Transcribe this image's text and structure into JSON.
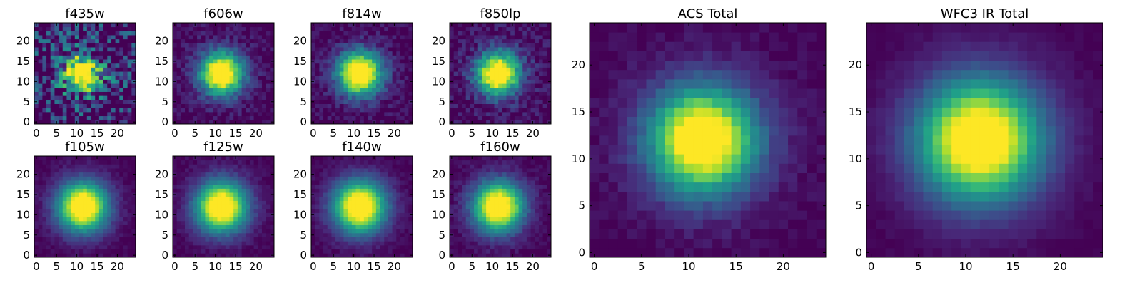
{
  "chart_data": [
    {
      "type": "heatmap",
      "title": "f435w",
      "noise": 0.3,
      "sigma": 3.2,
      "xlim": [
        -0.5,
        24.5
      ],
      "ylim": [
        -0.5,
        24.5
      ],
      "xticks": [
        0,
        5,
        10,
        15,
        20
      ],
      "yticks": [
        0,
        5,
        10,
        15,
        20
      ],
      "center": [
        11.5,
        12.0
      ],
      "seed": 11
    },
    {
      "type": "heatmap",
      "title": "f606w",
      "noise": 0.07,
      "sigma": 3.6,
      "xlim": [
        -0.5,
        24.5
      ],
      "ylim": [
        -0.5,
        24.5
      ],
      "xticks": [
        0,
        5,
        10,
        15,
        20
      ],
      "yticks": [
        0,
        5,
        10,
        15,
        20
      ],
      "center": [
        11.5,
        12.0
      ],
      "seed": 23
    },
    {
      "type": "heatmap",
      "title": "f814w",
      "noise": 0.07,
      "sigma": 3.7,
      "xlim": [
        -0.5,
        24.5
      ],
      "ylim": [
        -0.5,
        24.5
      ],
      "xticks": [
        0,
        5,
        10,
        15,
        20
      ],
      "yticks": [
        0,
        5,
        10,
        15,
        20
      ],
      "center": [
        11.5,
        12.0
      ],
      "seed": 37
    },
    {
      "type": "heatmap",
      "title": "f850lp",
      "noise": 0.09,
      "sigma": 3.6,
      "xlim": [
        -0.5,
        24.5
      ],
      "ylim": [
        -0.5,
        24.5
      ],
      "xticks": [
        0,
        5,
        10,
        15,
        20
      ],
      "yticks": [
        0,
        5,
        10,
        15,
        20
      ],
      "center": [
        11.5,
        12.0
      ],
      "seed": 41
    },
    {
      "type": "heatmap",
      "title": "f105w",
      "noise": 0.03,
      "sigma": 4.2,
      "xlim": [
        -0.5,
        24.5
      ],
      "ylim": [
        -0.5,
        24.5
      ],
      "xticks": [
        0,
        5,
        10,
        15,
        20
      ],
      "yticks": [
        0,
        5,
        10,
        15,
        20
      ],
      "center": [
        11.5,
        12.0
      ],
      "seed": 53
    },
    {
      "type": "heatmap",
      "title": "f125w",
      "noise": 0.03,
      "sigma": 4.3,
      "xlim": [
        -0.5,
        24.5
      ],
      "ylim": [
        -0.5,
        24.5
      ],
      "xticks": [
        0,
        5,
        10,
        15,
        20
      ],
      "yticks": [
        0,
        5,
        10,
        15,
        20
      ],
      "center": [
        11.5,
        12.0
      ],
      "seed": 67
    },
    {
      "type": "heatmap",
      "title": "f140w",
      "noise": 0.03,
      "sigma": 4.4,
      "xlim": [
        -0.5,
        24.5
      ],
      "ylim": [
        -0.5,
        24.5
      ],
      "xticks": [
        0,
        5,
        10,
        15,
        20
      ],
      "yticks": [
        0,
        5,
        10,
        15,
        20
      ],
      "center": [
        11.5,
        12.0
      ],
      "seed": 71
    },
    {
      "type": "heatmap",
      "title": "f160w",
      "noise": 0.04,
      "sigma": 4.2,
      "xlim": [
        -0.5,
        24.5
      ],
      "ylim": [
        -0.5,
        24.5
      ],
      "xticks": [
        0,
        5,
        10,
        15,
        20
      ],
      "yticks": [
        0,
        5,
        10,
        15,
        20
      ],
      "center": [
        11.5,
        12.0
      ],
      "seed": 83
    },
    {
      "type": "heatmap",
      "title": "ACS Total",
      "noise": 0.03,
      "sigma": 3.8,
      "xlim": [
        -0.5,
        24.5
      ],
      "ylim": [
        -0.5,
        24.5
      ],
      "xticks": [
        0,
        5,
        10,
        15,
        20
      ],
      "yticks": [
        0,
        5,
        10,
        15,
        20
      ],
      "center": [
        11.5,
        12.0
      ],
      "seed": 97
    },
    {
      "type": "heatmap",
      "title": "WFC3 IR Total",
      "noise": 0.015,
      "sigma": 4.4,
      "xlim": [
        -0.5,
        24.5
      ],
      "ylim": [
        -0.5,
        24.5
      ],
      "xticks": [
        0,
        5,
        10,
        15,
        20
      ],
      "yticks": [
        0,
        5,
        10,
        15,
        20
      ],
      "center": [
        11.5,
        12.0
      ],
      "seed": 101
    }
  ],
  "colormap": [
    "#440154",
    "#482878",
    "#3e4989",
    "#31688e",
    "#26828e",
    "#1f9e89",
    "#35b779",
    "#6ece58",
    "#b5de2b",
    "#fde725"
  ]
}
